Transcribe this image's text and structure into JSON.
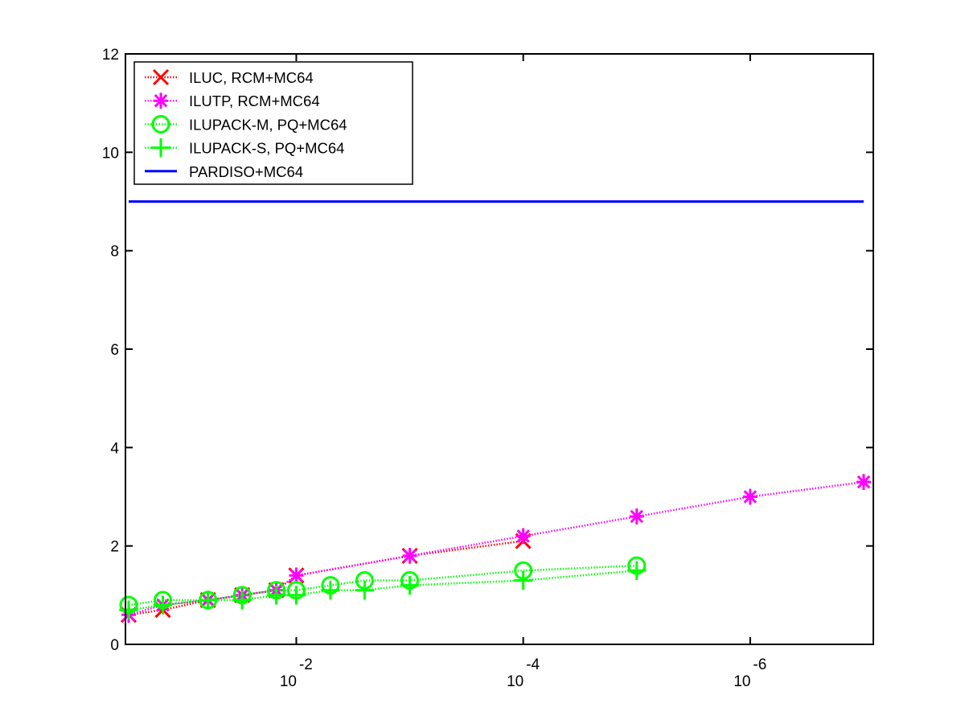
{
  "chart_data": {
    "type": "line",
    "title": "",
    "xlabel": "",
    "ylabel": "",
    "x_scale": "log",
    "x_reversed": true,
    "xlim": [
      0.3,
      1e-07
    ],
    "ylim": [
      0,
      12
    ],
    "y_ticks": [
      "0",
      "2",
      "4",
      "6",
      "8",
      "10",
      "12"
    ],
    "x_ticks": [
      {
        "value": 0.01,
        "base": "10",
        "exp": "-2"
      },
      {
        "value": 0.0001,
        "base": "10",
        "exp": "-4"
      },
      {
        "value": 1e-06,
        "base": "10",
        "exp": "-6"
      }
    ],
    "grid": false,
    "legend_position": "top-left",
    "series": [
      {
        "name": "ILUC, RCM+MC64",
        "color": "#ff0000",
        "marker": "x",
        "line_style": "dotted",
        "x": [
          0.3,
          0.15,
          0.06,
          0.03,
          0.015,
          0.01,
          0.001,
          0.0001
        ],
        "y": [
          0.6,
          0.7,
          0.9,
          1.0,
          1.1,
          1.4,
          1.8,
          2.1
        ]
      },
      {
        "name": "ILUTP, RCM+MC64",
        "color": "#ff00ff",
        "marker": "asterisk",
        "line_style": "dotted",
        "x": [
          0.3,
          0.15,
          0.06,
          0.03,
          0.015,
          0.01,
          0.001,
          0.0001,
          1e-05,
          1e-06,
          1e-07
        ],
        "y": [
          0.6,
          0.8,
          0.9,
          1.0,
          1.1,
          1.4,
          1.8,
          2.2,
          2.6,
          3.0,
          3.3
        ]
      },
      {
        "name": "ILUPACK-M, PQ+MC64",
        "color": "#00ff00",
        "marker": "circle",
        "line_style": "dotted",
        "x": [
          0.3,
          0.15,
          0.06,
          0.03,
          0.015,
          0.01,
          0.005,
          0.0025,
          0.001,
          0.0001,
          1e-05
        ],
        "y": [
          0.8,
          0.9,
          0.9,
          1.0,
          1.1,
          1.1,
          1.2,
          1.3,
          1.3,
          1.5,
          1.6
        ]
      },
      {
        "name": "ILUPACK-S, PQ+MC64",
        "color": "#00ff00",
        "marker": "plus",
        "line_style": "dotted",
        "x": [
          0.3,
          0.15,
          0.06,
          0.03,
          0.015,
          0.01,
          0.005,
          0.0025,
          0.001,
          0.0001,
          1e-05
        ],
        "y": [
          0.7,
          0.8,
          0.9,
          0.9,
          1.0,
          1.0,
          1.1,
          1.1,
          1.2,
          1.3,
          1.5
        ]
      },
      {
        "name": "PARDISO+MC64",
        "color": "#0000ff",
        "marker": "none",
        "line_style": "solid",
        "x": [
          0.3,
          1e-07
        ],
        "y": [
          9.0,
          9.0
        ]
      }
    ]
  }
}
